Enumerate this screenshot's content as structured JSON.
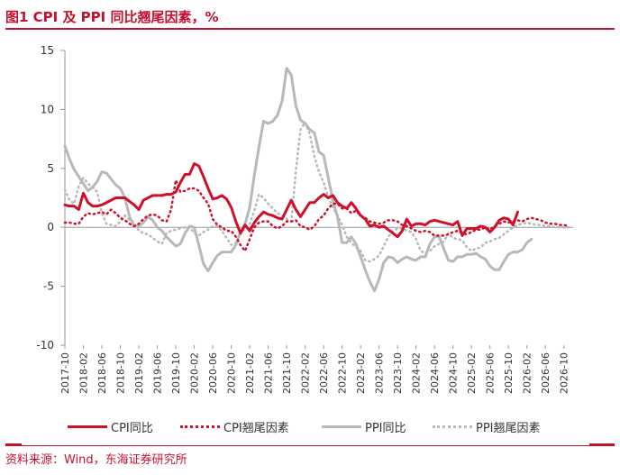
{
  "title": "图1  CPI 及 PPI 同比翘尾因素，%",
  "source": "资料来源：Wind，东海证券研究所",
  "colors": {
    "accent": "#c8102e",
    "cpi": "#d0102b",
    "ppi": "#b8b8b8",
    "axis": "#999999"
  },
  "chart_data": {
    "type": "line",
    "title": "图1  CPI 及 PPI 同比翘尾因素，%",
    "xlabel": "",
    "ylabel": "",
    "ylim": [
      -10,
      15
    ],
    "yticks": [
      15,
      10,
      5,
      0,
      -5,
      -10
    ],
    "x_start": "2017-10",
    "x_end": "2026-12",
    "x_tick_labels": [
      "2017-10",
      "2018-02",
      "2018-06",
      "2018-10",
      "2019-02",
      "2019-06",
      "2019-10",
      "2020-02",
      "2020-06",
      "2020-10",
      "2021-02",
      "2021-06",
      "2021-10",
      "2022-02",
      "2022-06",
      "2022-10",
      "2023-02",
      "2023-06",
      "2023-10",
      "2024-02",
      "2024-06",
      "2024-10",
      "2025-02",
      "2025-06",
      "2025-10",
      "2026-02",
      "2026-06",
      "2026-10"
    ],
    "legend_position": "bottom",
    "series": [
      {
        "name": "CPI同比",
        "style": "solid",
        "color": "#d0102b",
        "width": 3,
        "start": "2017-10",
        "values": [
          1.9,
          1.8,
          1.8,
          1.5,
          2.9,
          2.1,
          1.8,
          1.8,
          1.9,
          2.1,
          2.3,
          2.5,
          2.5,
          2.5,
          2.2,
          1.9,
          1.5,
          2.3,
          2.5,
          2.7,
          2.7,
          2.7,
          2.8,
          2.8,
          3.0,
          3.8,
          4.5,
          4.5,
          5.4,
          5.2,
          4.3,
          3.3,
          2.4,
          2.5,
          2.7,
          2.4,
          1.7,
          0.5,
          -0.5,
          0.2,
          -0.3,
          0.4,
          0.9,
          1.3,
          1.1,
          1.0,
          0.8,
          0.7,
          1.5,
          2.3,
          1.5,
          0.9,
          1.5,
          2.1,
          2.1,
          2.5,
          2.8,
          2.5,
          2.7,
          2.1,
          1.8,
          1.6,
          2.1,
          1.6,
          1.0,
          0.7,
          0.1,
          0.2,
          0.0,
          0.1,
          -0.2,
          -0.5,
          -0.8,
          -0.3,
          0.7,
          0.1,
          0.3,
          0.3,
          0.2,
          0.5,
          0.6,
          0.5,
          0.4,
          0.3,
          0.2,
          0.5,
          -0.7,
          -0.1,
          -0.1,
          -0.1,
          0.1,
          0.0,
          -0.4,
          0.0,
          0.6,
          0.8,
          0.7,
          0.2,
          1.3
        ]
      },
      {
        "name": "CPI翘尾因素",
        "style": "dotted",
        "color": "#d0102b",
        "width": 2.5,
        "start": "2017-10",
        "values": [
          0.4,
          0.4,
          0.3,
          0.3,
          0.9,
          1.2,
          1.1,
          1.2,
          1.3,
          1.1,
          1.5,
          1.2,
          0.8,
          0.6,
          0.3,
          0.1,
          0.3,
          0.7,
          1.0,
          1.1,
          1.0,
          0.6,
          0.5,
          1.5,
          4.0,
          3.0,
          3.1,
          3.3,
          3.3,
          3.1,
          2.5,
          2.0,
          0.7,
          0.2,
          0.0,
          -0.3,
          -0.3,
          -0.8,
          -1.5,
          -2.0,
          -1.0,
          0.0,
          0.4,
          0.5,
          0.5,
          0.1,
          -0.1,
          0.1,
          0.5,
          0.5,
          0.6,
          0.1,
          0.0,
          -0.2,
          0.1,
          0.7,
          1.0,
          1.6,
          2.0,
          2.0,
          1.6,
          1.6,
          1.2,
          1.4,
          1.0,
          0.8,
          0.5,
          0.4,
          0.3,
          0.4,
          0.6,
          0.6,
          0.5,
          0.2,
          0.1,
          -0.1,
          -0.3,
          -0.4,
          -0.3,
          -0.4,
          -0.7,
          -0.7,
          -0.7,
          -0.6,
          -0.4,
          -0.3,
          -0.5,
          -0.6,
          -0.4,
          -0.2,
          -0.2,
          0.0,
          -0.2,
          0.1,
          0.3,
          0.5,
          0.4,
          0.5,
          0.6,
          0.5,
          0.7,
          0.8,
          0.7,
          0.6,
          0.4,
          0.3,
          0.3,
          0.2,
          0.2,
          0.1
        ]
      },
      {
        "name": "PPI同比",
        "style": "solid",
        "color": "#b8b8b8",
        "width": 3,
        "start": "2017-10",
        "values": [
          6.9,
          5.8,
          4.9,
          4.3,
          3.7,
          3.1,
          3.4,
          3.9,
          4.7,
          4.6,
          4.1,
          3.6,
          3.3,
          2.5,
          0.9,
          0.1,
          0.1,
          0.4,
          0.9,
          0.6,
          0.0,
          -0.3,
          -0.8,
          -1.2,
          -1.6,
          -1.4,
          -0.5,
          0.1,
          0.0,
          -1.5,
          -3.1,
          -3.7,
          -3.0,
          -2.4,
          -2.1,
          -2.1,
          -2.1,
          -1.5,
          -0.4,
          0.3,
          1.7,
          4.4,
          6.8,
          9.0,
          8.8,
          9.0,
          9.5,
          10.7,
          13.5,
          12.9,
          10.3,
          9.1,
          8.8,
          8.3,
          8.0,
          6.4,
          6.1,
          4.2,
          2.3,
          0.9,
          -1.3,
          -1.3,
          -0.8,
          -1.4,
          -2.5,
          -3.6,
          -4.6,
          -5.4,
          -4.4,
          -3.0,
          -2.5,
          -2.6,
          -3.0,
          -2.7,
          -2.5,
          -2.7,
          -2.8,
          -2.5,
          -2.5,
          -1.4,
          -0.8,
          -0.8,
          -1.8,
          -2.8,
          -2.9,
          -2.5,
          -2.5,
          -2.3,
          -2.3,
          -2.2,
          -2.5,
          -2.7,
          -3.3,
          -3.6,
          -3.6,
          -2.9,
          -2.3,
          -2.1,
          -2.1,
          -1.9,
          -1.3,
          -1.0
        ]
      },
      {
        "name": "PPI翘尾因素",
        "style": "dotted",
        "color": "#b8b8b8",
        "width": 2.5,
        "start": "2017-10",
        "values": [
          3.2,
          2.3,
          2.0,
          3.5,
          4.2,
          3.7,
          3.4,
          3.0,
          1.2,
          0.3,
          0.2,
          0.1,
          0.5,
          1.0,
          0.6,
          0.4,
          -0.3,
          -0.5,
          -0.6,
          -0.9,
          -1.2,
          -1.4,
          -0.5,
          -0.3,
          -0.2,
          -0.1,
          0.0,
          0.0,
          -0.5,
          -0.7,
          -0.4,
          -0.2,
          0.1,
          0.1,
          -0.3,
          -0.9,
          -1.5,
          -1.3,
          -0.6,
          -0.1,
          0.3,
          1.4,
          2.8,
          2.5,
          2.0,
          1.6,
          1.2,
          1.0,
          0.7,
          0.5,
          4.8,
          8.3,
          8.9,
          7.9,
          6.0,
          4.7,
          3.8,
          2.5,
          1.7,
          1.0,
          0.2,
          -0.8,
          -1.3,
          -1.7,
          -2.0,
          -2.8,
          -2.9,
          -2.7,
          -2.4,
          -1.6,
          -0.8,
          -0.3,
          -0.1,
          -0.1,
          -0.3,
          -0.4,
          -1.0,
          -2.0,
          -2.2,
          -2.0,
          -1.6,
          -1.4,
          -1.2,
          -0.5,
          -0.9,
          -1.0,
          -1.1,
          -1.7,
          -2.0,
          -1.8,
          -1.7,
          -1.3,
          -1.2,
          -1.0,
          -0.9,
          -0.6,
          -0.3,
          0.0,
          0.2,
          0.3,
          0.4,
          0.3,
          0.2,
          0.2,
          0.1,
          0.1,
          0.0,
          0.0,
          0.0,
          0.0
        ]
      }
    ]
  }
}
